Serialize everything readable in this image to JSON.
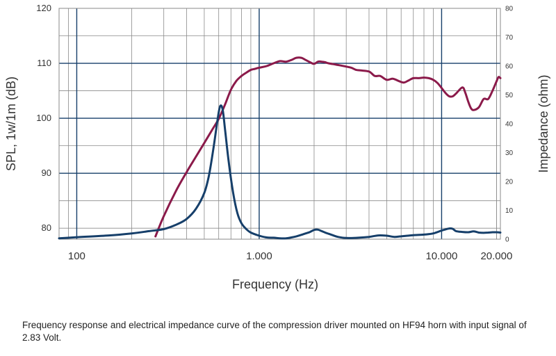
{
  "caption": "Frequency response and electrical impedance curve of the compression driver mounted on HF94 horn with input signal of 2.83 Volt.",
  "chart_data": {
    "type": "line",
    "xlabel": "Frequency (Hz)",
    "ylabel_left": "SPL, 1w/1m (dB)",
    "ylabel_right": "Impedance (ohm)",
    "x_scale": "log",
    "xlim": [
      80,
      21000
    ],
    "ylim_left": [
      78,
      120
    ],
    "ylim_right": [
      0,
      80
    ],
    "x_tick_labels": [
      {
        "value": 100,
        "label": "100"
      },
      {
        "value": 1000,
        "label": "1.000"
      },
      {
        "value": 10000,
        "label": "10.000"
      },
      {
        "value": 20000,
        "label": "20.000"
      }
    ],
    "y_left_ticks": [
      {
        "value": 80,
        "label": "80"
      },
      {
        "value": 90,
        "label": "90"
      },
      {
        "value": 100,
        "label": "100"
      },
      {
        "value": 110,
        "label": "110"
      },
      {
        "value": 120,
        "label": "120"
      }
    ],
    "y_right_ticks": [
      {
        "value": 0,
        "label": "0"
      },
      {
        "value": 10,
        "label": "10"
      },
      {
        "value": 20,
        "label": "20"
      },
      {
        "value": 30,
        "label": "30"
      },
      {
        "value": 40,
        "label": "40"
      },
      {
        "value": 50,
        "label": "50"
      },
      {
        "value": 60,
        "label": "60"
      },
      {
        "value": 70,
        "label": "70"
      },
      {
        "value": 80,
        "label": "80"
      }
    ],
    "grid": true,
    "colors": {
      "spl": "#8b1a4a",
      "impedance": "#163f6a",
      "grid": "#8a8a8a",
      "grid_major": "#163f6a"
    },
    "series": [
      {
        "axis": "left",
        "color": "#8b1a4a",
        "x": [
          270,
          300,
          350,
          400,
          450,
          500,
          550,
          600,
          650,
          700,
          750,
          800,
          850,
          900,
          950,
          1000,
          1100,
          1200,
          1300,
          1400,
          1500,
          1600,
          1700,
          1800,
          1900,
          2000,
          2100,
          2200,
          2300,
          2400,
          2600,
          2800,
          3000,
          3200,
          3400,
          3600,
          4000,
          4300,
          4600,
          5000,
          5400,
          5800,
          6200,
          6600,
          7000,
          7500,
          8000,
          8500,
          9000,
          9500,
          10000,
          10500,
          11000,
          11500,
          12000,
          13000,
          13500,
          14000,
          14500,
          15000,
          16000,
          17000,
          18000,
          19000,
          20000,
          20500,
          21000
        ],
        "y": [
          78.5,
          82.2,
          86.8,
          90.2,
          93.0,
          95.5,
          97.8,
          99.9,
          102.5,
          105.2,
          106.8,
          107.7,
          108.3,
          108.8,
          109.0,
          109.2,
          109.5,
          110.0,
          110.4,
          110.3,
          110.6,
          111.0,
          111.0,
          110.6,
          110.2,
          109.9,
          110.3,
          110.3,
          110.2,
          110.0,
          109.8,
          109.6,
          109.4,
          109.2,
          108.8,
          108.7,
          108.5,
          107.7,
          107.7,
          107.0,
          107.2,
          106.8,
          106.5,
          106.9,
          107.3,
          107.3,
          107.4,
          107.3,
          107.0,
          106.4,
          105.5,
          104.6,
          104.0,
          104.0,
          104.5,
          105.6,
          104.6,
          103.0,
          101.8,
          101.5,
          102.0,
          103.5,
          103.5,
          105.0,
          106.7,
          107.5,
          107.3
        ]
      },
      {
        "axis": "right",
        "color": "#163f6a",
        "x": [
          80,
          100,
          150,
          200,
          250,
          300,
          350,
          400,
          450,
          500,
          530,
          560,
          590,
          610,
          630,
          650,
          680,
          720,
          760,
          800,
          850,
          900,
          1000,
          1100,
          1200,
          1300,
          1400,
          1500,
          1600,
          1700,
          1800,
          1900,
          2000,
          2100,
          2200,
          2300,
          2500,
          2700,
          3000,
          3500,
          4000,
          4500,
          5000,
          5500,
          6000,
          6500,
          7000,
          8000,
          9000,
          10000,
          10500,
          11000,
          11500,
          12000,
          13000,
          14000,
          15000,
          16000,
          17000,
          18000,
          19000,
          20000,
          21000
        ],
        "y": [
          0.3,
          0.7,
          1.3,
          2.0,
          2.8,
          3.5,
          5.0,
          7.0,
          10.5,
          16.0,
          22.0,
          31.0,
          41.0,
          46.0,
          45.0,
          38.0,
          27.0,
          16.0,
          9.0,
          5.5,
          3.5,
          2.3,
          1.2,
          0.6,
          0.5,
          0.3,
          0.3,
          0.6,
          1.0,
          1.5,
          2.0,
          2.5,
          3.2,
          3.3,
          2.8,
          2.3,
          1.5,
          0.8,
          0.4,
          0.5,
          0.8,
          1.3,
          1.2,
          0.8,
          1.0,
          1.2,
          1.4,
          1.6,
          2.0,
          3.0,
          3.4,
          3.7,
          3.6,
          2.8,
          2.5,
          2.4,
          2.7,
          2.3,
          2.2,
          2.3,
          2.4,
          2.4,
          2.3
        ]
      }
    ]
  }
}
